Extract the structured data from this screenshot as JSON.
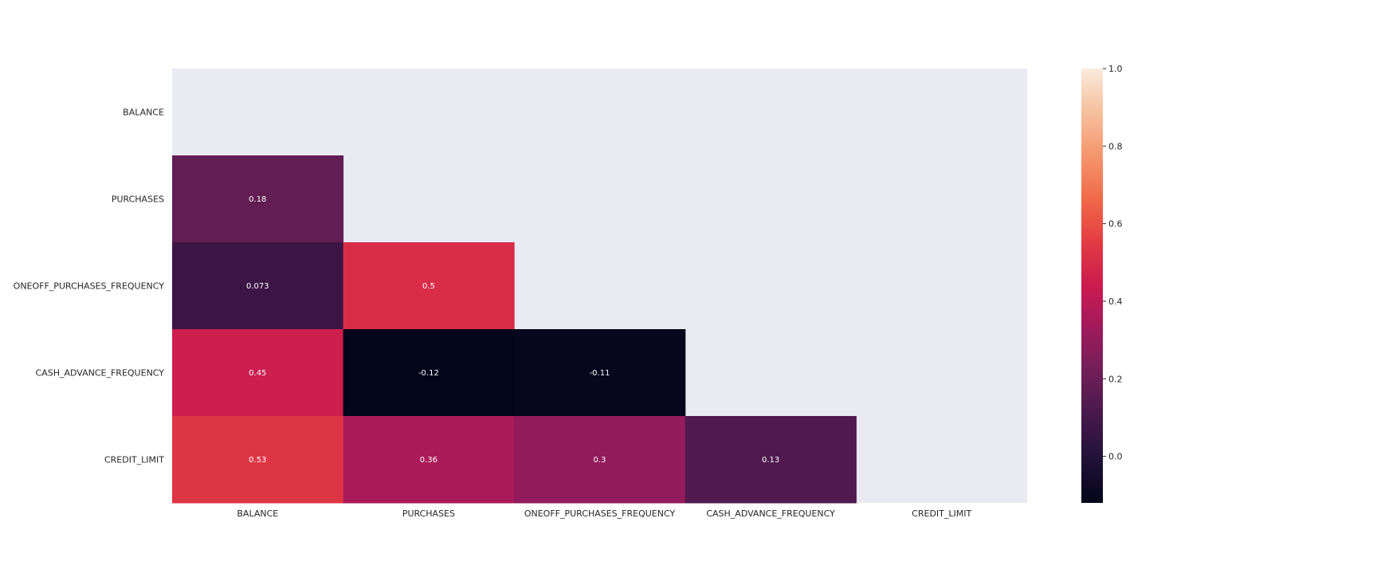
{
  "chart_data": {
    "type": "heatmap",
    "title": "",
    "xlabel": "",
    "ylabel": "",
    "rows": [
      "BALANCE",
      "PURCHASES",
      "ONEOFF_PURCHASES_FREQUENCY",
      "CASH_ADVANCE_FREQUENCY",
      "CREDIT_LIMIT"
    ],
    "columns": [
      "BALANCE",
      "PURCHASES",
      "ONEOFF_PURCHASES_FREQUENCY",
      "CASH_ADVANCE_FREQUENCY",
      "CREDIT_LIMIT"
    ],
    "mask": "upper-triangle-including-diagonal",
    "cells": [
      {
        "row": 1,
        "col": 0,
        "value": 0.18,
        "label": "0.18"
      },
      {
        "row": 2,
        "col": 0,
        "value": 0.073,
        "label": "0.073"
      },
      {
        "row": 2,
        "col": 1,
        "value": 0.5,
        "label": "0.5"
      },
      {
        "row": 3,
        "col": 0,
        "value": 0.45,
        "label": "0.45"
      },
      {
        "row": 3,
        "col": 1,
        "value": -0.12,
        "label": "-0.12"
      },
      {
        "row": 3,
        "col": 2,
        "value": -0.11,
        "label": "-0.11"
      },
      {
        "row": 4,
        "col": 0,
        "value": 0.53,
        "label": "0.53"
      },
      {
        "row": 4,
        "col": 1,
        "value": 0.36,
        "label": "0.36"
      },
      {
        "row": 4,
        "col": 2,
        "value": 0.3,
        "label": "0.3"
      },
      {
        "row": 4,
        "col": 3,
        "value": 0.13,
        "label": "0.13"
      }
    ],
    "colorbar": {
      "range": [
        -0.12,
        1.0
      ],
      "ticks": [
        "0.0",
        "0.2",
        "0.4",
        "0.6",
        "0.8",
        "1.0"
      ],
      "colormap": "rocket"
    },
    "mask_color": "#eaeaf2",
    "annotation_color": "#ffffff",
    "tick_label_color": "#262626"
  }
}
